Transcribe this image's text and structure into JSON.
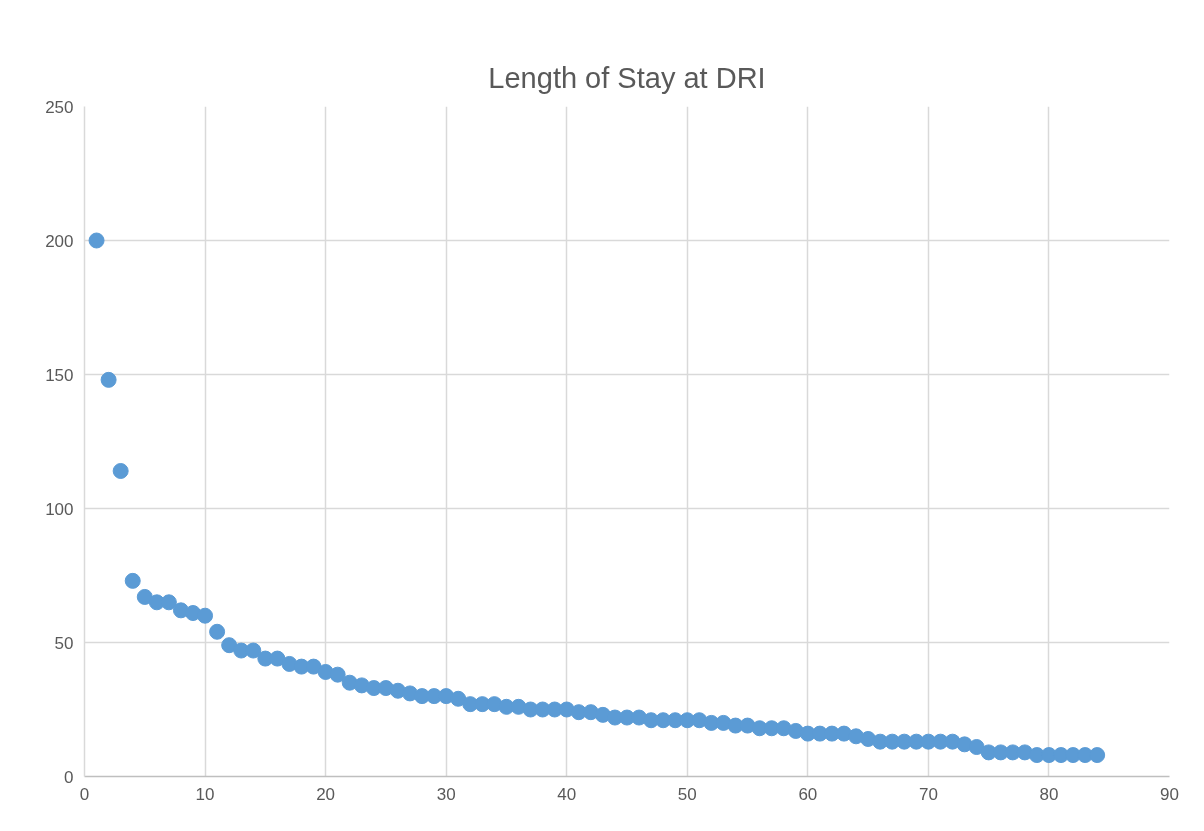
{
  "chart_data": {
    "type": "scatter",
    "title": "Length of Stay at DRI",
    "x": [
      1,
      2,
      3,
      4,
      5,
      6,
      7,
      8,
      9,
      10,
      11,
      12,
      13,
      14,
      15,
      16,
      17,
      18,
      19,
      20,
      21,
      22,
      23,
      24,
      25,
      26,
      27,
      28,
      29,
      30,
      31,
      32,
      33,
      34,
      35,
      36,
      37,
      38,
      39,
      40,
      41,
      42,
      43,
      44,
      45,
      46,
      47,
      48,
      49,
      50,
      51,
      52,
      53,
      54,
      55,
      56,
      57,
      58,
      59,
      60,
      61,
      62,
      63,
      64,
      65,
      66,
      67,
      68,
      69,
      70,
      71,
      72,
      73,
      74,
      75,
      76,
      77,
      78,
      79,
      80,
      81,
      82,
      83,
      84
    ],
    "series": [
      {
        "color": "#5b9bd5",
        "values": [
          200,
          148,
          114,
          73,
          67,
          65,
          65,
          62,
          61,
          60,
          54,
          49,
          47,
          47,
          44,
          44,
          42,
          41,
          41,
          39,
          38,
          35,
          34,
          33,
          33,
          32,
          31,
          30,
          30,
          30,
          29,
          27,
          27,
          27,
          26,
          26,
          25,
          25,
          25,
          25,
          24,
          24,
          23,
          22,
          22,
          22,
          21,
          21,
          21,
          21,
          21,
          20,
          20,
          19,
          19,
          18,
          18,
          18,
          17,
          16,
          16,
          16,
          16,
          15,
          14,
          13,
          13,
          13,
          13,
          13,
          13,
          13,
          12,
          11,
          9,
          9,
          9,
          9,
          8,
          8,
          8,
          8,
          8,
          8
        ]
      }
    ],
    "xlim": [
      0,
      90
    ],
    "xticks": [
      0,
      10,
      20,
      30,
      40,
      50,
      60,
      70,
      80,
      90
    ],
    "ylim": [
      0,
      250
    ],
    "yticks": [
      0,
      50,
      100,
      150,
      200,
      250
    ],
    "grid": true,
    "marker": "circle"
  }
}
